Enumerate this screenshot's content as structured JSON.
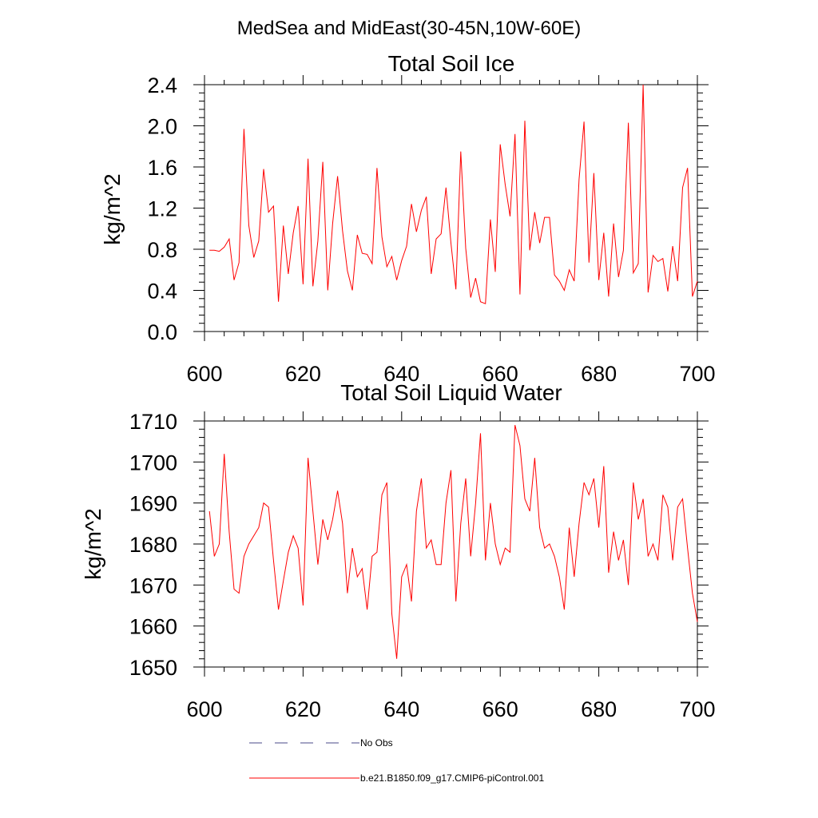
{
  "figure_title": "MedSea and MidEast(30-45N,10W-60E)",
  "colors": {
    "series": "#ff0000",
    "no_obs": "#4a4a8a",
    "axis": "#000000"
  },
  "chart_data": [
    {
      "type": "line",
      "title": "Total Soil Ice",
      "xlabel": "",
      "ylabel": "kg/m^2",
      "xlim": [
        600,
        700
      ],
      "ylim": [
        0.0,
        2.4
      ],
      "xticks": [
        600,
        620,
        640,
        660,
        680,
        700
      ],
      "xtick_labels": [
        "600",
        "620",
        "640",
        "660",
        "680",
        "700"
      ],
      "yticks": [
        0.0,
        0.4,
        0.8,
        1.2,
        1.6,
        2.0,
        2.4
      ],
      "ytick_labels": [
        "0.0",
        "0.4",
        "0.8",
        "1.2",
        "1.6",
        "2.0",
        "2.4"
      ],
      "series": [
        {
          "name": "b.e21.B1850.f09_g17.CMIP6-piControl.001",
          "x": [
            601,
            602,
            603,
            604,
            605,
            606,
            607,
            608,
            609,
            610,
            611,
            612,
            613,
            614,
            615,
            616,
            617,
            618,
            619,
            620,
            621,
            622,
            623,
            624,
            625,
            626,
            627,
            628,
            629,
            630,
            631,
            632,
            633,
            634,
            635,
            636,
            637,
            638,
            639,
            640,
            641,
            642,
            643,
            644,
            645,
            646,
            647,
            648,
            649,
            650,
            651,
            652,
            653,
            654,
            655,
            656,
            657,
            658,
            659,
            660,
            661,
            662,
            663,
            664,
            665,
            666,
            667,
            668,
            669,
            670,
            671,
            672,
            673,
            674,
            675,
            676,
            677,
            678,
            679,
            680,
            681,
            682,
            683,
            684,
            685,
            686,
            687,
            688,
            689,
            690,
            691,
            692,
            693,
            694,
            695,
            696,
            697,
            698,
            699,
            700
          ],
          "values": [
            0.79,
            0.79,
            0.78,
            0.82,
            0.9,
            0.5,
            0.67,
            1.97,
            1.03,
            0.72,
            0.88,
            1.58,
            1.16,
            1.22,
            0.29,
            1.03,
            0.56,
            0.96,
            1.22,
            0.46,
            1.68,
            0.44,
            0.88,
            1.65,
            0.4,
            1.05,
            1.51,
            0.98,
            0.59,
            0.4,
            0.94,
            0.76,
            0.75,
            0.66,
            1.59,
            0.92,
            0.63,
            0.73,
            0.5,
            0.69,
            0.83,
            1.24,
            0.97,
            1.18,
            1.31,
            0.56,
            0.9,
            0.95,
            1.4,
            0.86,
            0.41,
            1.75,
            0.81,
            0.33,
            0.52,
            0.29,
            0.27,
            1.09,
            0.58,
            1.82,
            1.43,
            1.12,
            1.92,
            0.36,
            2.05,
            0.79,
            1.16,
            0.86,
            1.11,
            1.11,
            0.55,
            0.49,
            0.4,
            0.6,
            0.49,
            1.48,
            2.04,
            0.67,
            1.54,
            0.5,
            0.96,
            0.34,
            1.05,
            0.53,
            0.79,
            2.03,
            0.57,
            0.66,
            2.4,
            0.38,
            0.74,
            0.68,
            0.71,
            0.39,
            0.83,
            0.49,
            1.4,
            1.59,
            0.34,
            0.49
          ]
        }
      ]
    },
    {
      "type": "line",
      "title": "Total Soil Liquid Water",
      "xlabel": "",
      "ylabel": "kg/m^2",
      "xlim": [
        600,
        700
      ],
      "ylim": [
        1650,
        1710
      ],
      "xticks": [
        600,
        620,
        640,
        660,
        680,
        700
      ],
      "xtick_labels": [
        "600",
        "620",
        "640",
        "660",
        "680",
        "700"
      ],
      "yticks": [
        1650,
        1660,
        1670,
        1680,
        1690,
        1700,
        1710
      ],
      "ytick_labels": [
        "1650",
        "1660",
        "1670",
        "1680",
        "1690",
        "1700",
        "1710"
      ],
      "series": [
        {
          "name": "b.e21.B1850.f09_g17.CMIP6-piControl.001",
          "x": [
            601,
            602,
            603,
            604,
            605,
            606,
            607,
            608,
            609,
            610,
            611,
            612,
            613,
            614,
            615,
            616,
            617,
            618,
            619,
            620,
            621,
            622,
            623,
            624,
            625,
            626,
            627,
            628,
            629,
            630,
            631,
            632,
            633,
            634,
            635,
            636,
            637,
            638,
            639,
            640,
            641,
            642,
            643,
            644,
            645,
            646,
            647,
            648,
            649,
            650,
            651,
            652,
            653,
            654,
            655,
            656,
            657,
            658,
            659,
            660,
            661,
            662,
            663,
            664,
            665,
            666,
            667,
            668,
            669,
            670,
            671,
            672,
            673,
            674,
            675,
            676,
            677,
            678,
            679,
            680,
            681,
            682,
            683,
            684,
            685,
            686,
            687,
            688,
            689,
            690,
            691,
            692,
            693,
            694,
            695,
            696,
            697,
            698,
            699,
            700
          ],
          "values": [
            1688,
            1677,
            1680,
            1702,
            1683,
            1669,
            1668,
            1677,
            1680,
            1682,
            1684,
            1690,
            1689,
            1676,
            1664,
            1671,
            1678,
            1682,
            1679,
            1665,
            1701,
            1688,
            1675,
            1686,
            1681,
            1686,
            1693,
            1685,
            1668,
            1679,
            1672,
            1674,
            1664,
            1677,
            1678,
            1692,
            1695,
            1663,
            1652,
            1672,
            1675,
            1666,
            1688,
            1696,
            1679,
            1681,
            1675,
            1675,
            1690,
            1698,
            1666,
            1685,
            1696,
            1677,
            1690,
            1707,
            1676,
            1690,
            1680,
            1675,
            1679,
            1678,
            1709,
            1704,
            1691,
            1688,
            1701,
            1684,
            1679,
            1680,
            1677,
            1672,
            1664,
            1684,
            1672,
            1685,
            1695,
            1692,
            1696,
            1684,
            1699,
            1673,
            1683,
            1676,
            1681,
            1670,
            1695,
            1686,
            1691,
            1677,
            1680,
            1676,
            1692,
            1689,
            1676,
            1689,
            1691,
            1679,
            1668,
            1661
          ]
        }
      ]
    }
  ],
  "legend": {
    "entries": [
      {
        "label": "No Obs",
        "style": "dashed"
      },
      {
        "label": "b.e21.B1850.f09_g17.CMIP6-piControl.001",
        "style": "solid"
      }
    ]
  }
}
